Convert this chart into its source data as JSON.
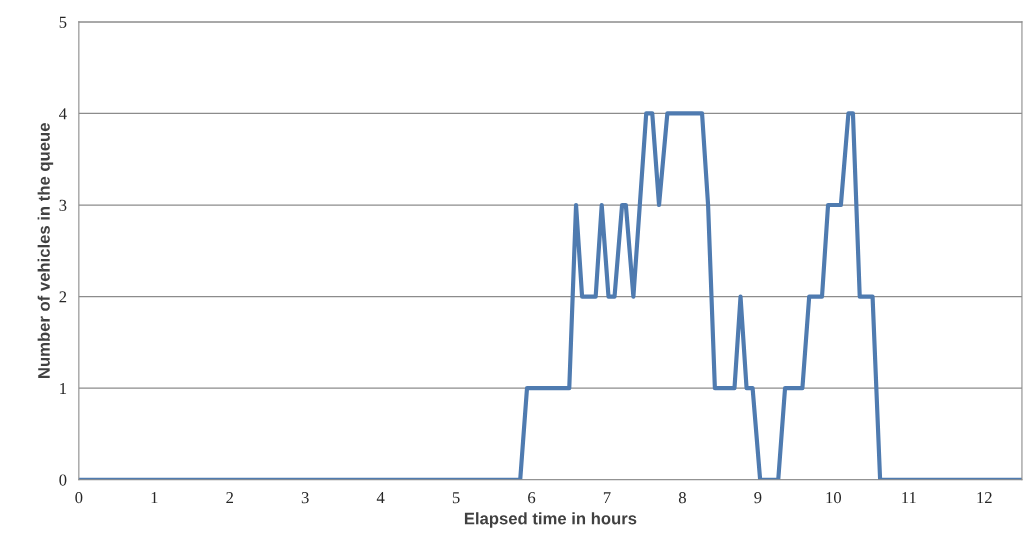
{
  "chart_data": {
    "type": "line",
    "xlabel": "Elapsed time in hours",
    "ylabel": "Number of vehicles in the queue",
    "x": [
      0,
      5.85,
      5.94,
      6.5,
      6.59,
      6.67,
      6.85,
      6.93,
      7.02,
      7.1,
      7.2,
      7.25,
      7.35,
      7.52,
      7.6,
      7.69,
      7.8,
      8.26,
      8.34,
      8.43,
      8.69,
      8.77,
      8.85,
      8.93,
      9.03,
      9.27,
      9.36,
      9.59,
      9.68,
      9.85,
      9.93,
      10.1,
      10.2,
      10.26,
      10.35,
      10.52,
      10.62,
      12.5
    ],
    "series": [
      {
        "color": "#4f7bb0",
        "values": [
          0,
          0,
          1,
          1,
          3,
          2,
          2,
          3,
          2,
          2,
          3,
          3,
          2,
          4,
          4,
          3,
          4,
          4,
          3,
          1,
          1,
          2,
          1,
          1,
          0,
          0,
          1,
          1,
          2,
          2,
          3,
          3,
          4,
          4,
          2,
          2,
          0,
          0
        ]
      }
    ],
    "xlim": [
      0,
      12.5
    ],
    "xticks": [
      0,
      1,
      2,
      3,
      4,
      5,
      6,
      7,
      8,
      9,
      10,
      11,
      12
    ],
    "ylim": [
      0,
      5
    ],
    "yticks": [
      0,
      1,
      2,
      3,
      4,
      5
    ],
    "grid": "y",
    "marker": "none",
    "line_style": "solid",
    "legend": false
  }
}
